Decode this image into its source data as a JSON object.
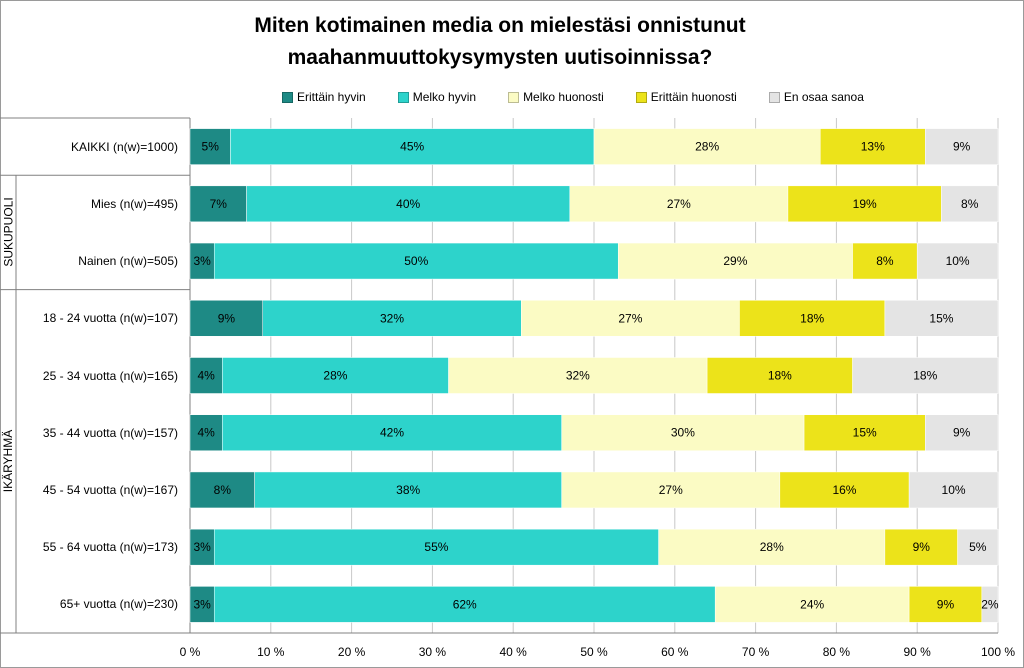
{
  "chart_data": {
    "type": "bar",
    "orientation": "horizontal",
    "stacked": true,
    "percent": true,
    "title": [
      "Miten kotimainen media on mielestäsi onnistunut",
      "maahanmuuttokysymysten uutisoinnissa?"
    ],
    "categories": [
      "KAIKKI (n(w)=1000)",
      "Mies (n(w)=495)",
      "Nainen (n(w)=505)",
      "18 - 24 vuotta (n(w)=107)",
      "25 - 34 vuotta (n(w)=165)",
      "35 - 44 vuotta (n(w)=157)",
      "45 - 54 vuotta (n(w)=167)",
      "55 - 64 vuotta (n(w)=173)",
      "65+ vuotta (n(w)=230)"
    ],
    "groups": [
      {
        "label": "",
        "rows": [
          0,
          0
        ]
      },
      {
        "label": "SUKUPUOLI",
        "rows": [
          1,
          2
        ]
      },
      {
        "label": "IKÄRYHMÄ",
        "rows": [
          3,
          8
        ]
      }
    ],
    "series": [
      {
        "name": "Erittäin hyvin",
        "color": "#1e8a85",
        "values": [
          5,
          7,
          3,
          9,
          4,
          4,
          8,
          3,
          3
        ],
        "labels": [
          "5%",
          "7%",
          "3%",
          "9%",
          "4%",
          "4%",
          "8%",
          "3%",
          "3%"
        ]
      },
      {
        "name": "Melko hyvin",
        "color": "#2dd3cb",
        "values": [
          45,
          40,
          50,
          32,
          28,
          42,
          38,
          55,
          62
        ],
        "labels": [
          "45%",
          "40%",
          "50%",
          "32%",
          "28%",
          "42%",
          "38%",
          "55%",
          "62%"
        ]
      },
      {
        "name": "Melko huonosti",
        "color": "#fbfbc4",
        "values": [
          28,
          27,
          29,
          27,
          32,
          30,
          27,
          28,
          24
        ],
        "labels": [
          "28%",
          "27%",
          "29%",
          "27%",
          "32%",
          "30%",
          "27%",
          "28%",
          "24%"
        ]
      },
      {
        "name": "Erittäin huonosti",
        "color": "#ece31a",
        "values": [
          13,
          19,
          8,
          18,
          18,
          15,
          16,
          9,
          9
        ],
        "labels": [
          "13%",
          "19%",
          "8%",
          "18%",
          "18%",
          "15%",
          "16%",
          "9%",
          "9%"
        ]
      },
      {
        "name": "En osaa sanoa",
        "color": "#e4e4e4",
        "values": [
          9,
          8,
          10,
          15,
          18,
          9,
          10,
          5,
          2
        ],
        "labels": [
          "9%",
          "8%",
          "10%",
          "15%",
          "18%",
          "9%",
          "10%",
          "5%",
          "2%"
        ]
      }
    ],
    "xlim": [
      0,
      100
    ],
    "x_ticks": [
      "0 %",
      "10 %",
      "20 %",
      "30 %",
      "40 %",
      "50 %",
      "60 %",
      "70 %",
      "80 %",
      "90 %",
      "100 %"
    ],
    "grid": true,
    "legend_position": "top"
  }
}
